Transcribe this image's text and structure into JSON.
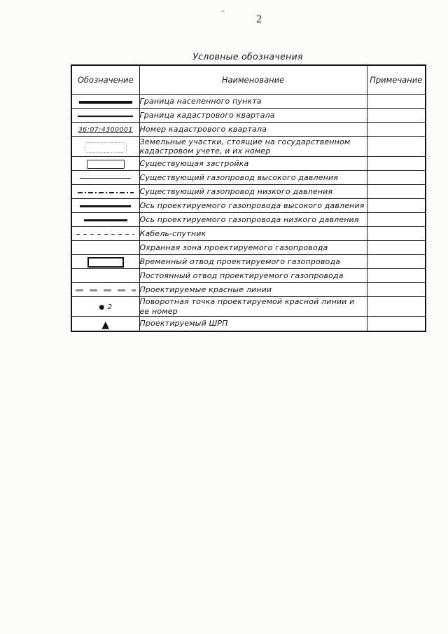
{
  "page": {
    "number": "2"
  },
  "table": {
    "title": "Условные обозначения",
    "headers": {
      "symbol": "Обозначение",
      "name": "Наименование",
      "note": "Примечание"
    },
    "rows": [
      {
        "symbol_type": "line-thick",
        "symbol_text": "",
        "name": "Граница населенного пункта",
        "note": ""
      },
      {
        "symbol_type": "line-medium",
        "symbol_text": "",
        "name": "Граница кадастрового квартала",
        "note": ""
      },
      {
        "symbol_type": "quarter-number",
        "symbol_text": "36:07:4300001",
        "name": "Номер кадастрового квартала",
        "note": ""
      },
      {
        "symbol_type": "rect-dashed-faint",
        "symbol_text": "",
        "name": "Земельные участки, стоящие на государственном\nкадастровом учете, и их номер",
        "note": ""
      },
      {
        "symbol_type": "rect-outline",
        "symbol_text": "",
        "name": "Существующая застройка",
        "note": ""
      },
      {
        "symbol_type": "line-thin",
        "symbol_text": "",
        "name": "Существующий газопровод высокого давления",
        "note": ""
      },
      {
        "symbol_type": "line-dashdot",
        "symbol_text": "",
        "name": "Существующий газопровод низкого давления",
        "note": ""
      },
      {
        "symbol_type": "line-solid2",
        "symbol_text": "",
        "name": "Ось проектируемого газопровода высокого давления",
        "note": ""
      },
      {
        "symbol_type": "line-solid3",
        "symbol_text": "",
        "name": "Ось проектируемого газопровода низкого давления",
        "note": ""
      },
      {
        "symbol_type": "line-dashed",
        "symbol_text": "",
        "name": "Кабель-спутник",
        "note": ""
      },
      {
        "symbol_type": "blank",
        "symbol_text": "",
        "name": "Охранная зона проектируемого газопровода",
        "note": ""
      },
      {
        "symbol_type": "rect-solid",
        "symbol_text": "",
        "name": "Временный отвод проектируемого газопровода",
        "note": ""
      },
      {
        "symbol_type": "blank",
        "symbol_text": "",
        "name": "Постоянный отвод проектируемого газопровода",
        "note": ""
      },
      {
        "symbol_type": "line-longdash-gray",
        "symbol_text": "",
        "name": "Проектируемые красные линии",
        "note": ""
      },
      {
        "symbol_type": "dot-number",
        "symbol_text": "2",
        "name": "Поворотная точка проектируемой красной линии и ее номер",
        "note": ""
      },
      {
        "symbol_type": "triangle",
        "symbol_text": "",
        "name": "Проектируемый ШРП",
        "note": ""
      }
    ]
  },
  "colors": {
    "ink": "#1b1b1b",
    "table_border": "#1c1c1c",
    "faint_symbol": "#b3b3b3",
    "red_line_scanned_gray": "#8e8e8e",
    "paper": "#fcfcfb"
  }
}
